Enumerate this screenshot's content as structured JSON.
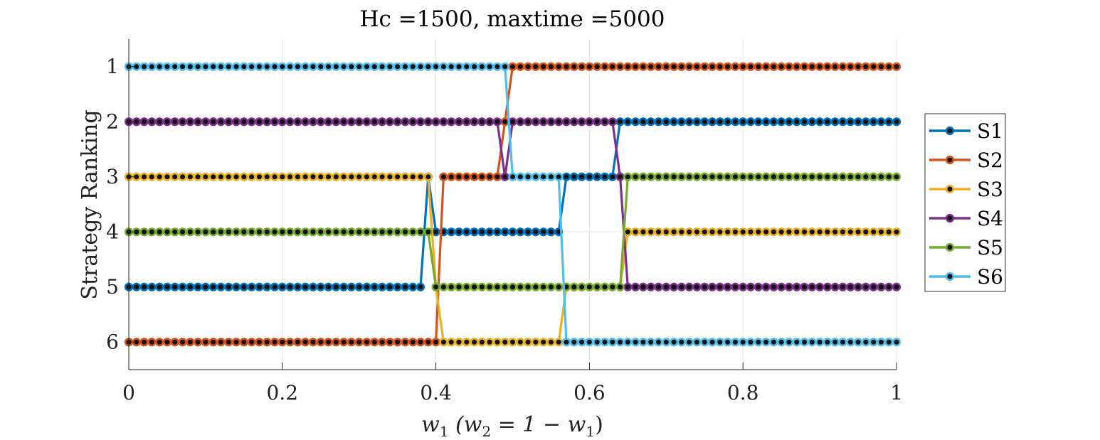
{
  "chart_data": {
    "type": "line",
    "title": "Hc =1500, maxtime =5000",
    "xlabel_parts": [
      "w",
      "1",
      " (w",
      "2",
      " = 1 − w",
      "1",
      ")"
    ],
    "ylabel": "Strategy Ranking",
    "xlim": [
      0,
      1
    ],
    "ylim": [
      0.5,
      6.5
    ],
    "y_reversed": true,
    "xticks": [
      0,
      0.2,
      0.4,
      0.6,
      0.8,
      1
    ],
    "xtick_labels": [
      "0",
      "0.2",
      "0.4",
      "0.6",
      "0.8",
      "1"
    ],
    "yticks": [
      1,
      2,
      3,
      4,
      5,
      6
    ],
    "ytick_labels": [
      "1",
      "2",
      "3",
      "4",
      "5",
      "6"
    ],
    "grid": true,
    "legend_position": "right-outside",
    "marker": "filled circle, black center",
    "num_points": 101,
    "series": [
      {
        "name": "S1",
        "color": "#0072BD",
        "segments": [
          {
            "from": 0,
            "to": 0.38,
            "rank": 5
          },
          {
            "from": 0.39,
            "to": 0.39,
            "rank": 3
          },
          {
            "from": 0.4,
            "to": 0.56,
            "rank": 4
          },
          {
            "from": 0.57,
            "to": 0.63,
            "rank": 3
          },
          {
            "from": 0.64,
            "to": 1,
            "rank": 2
          }
        ]
      },
      {
        "name": "S2",
        "color": "#D95319",
        "segments": [
          {
            "from": 0,
            "to": 0.4,
            "rank": 6
          },
          {
            "from": 0.41,
            "to": 0.48,
            "rank": 3
          },
          {
            "from": 0.49,
            "to": 0.49,
            "rank": 2
          },
          {
            "from": 0.5,
            "to": 1,
            "rank": 1
          }
        ]
      },
      {
        "name": "S3",
        "color": "#EDB120",
        "segments": [
          {
            "from": 0,
            "to": 0.39,
            "rank": 3
          },
          {
            "from": 0.4,
            "to": 0.4,
            "rank": 5
          },
          {
            "from": 0.41,
            "to": 0.56,
            "rank": 6
          },
          {
            "from": 0.57,
            "to": 0.64,
            "rank": 5
          },
          {
            "from": 0.65,
            "to": 1,
            "rank": 4
          }
        ]
      },
      {
        "name": "S4",
        "color": "#7E2F8E",
        "segments": [
          {
            "from": 0,
            "to": 0.48,
            "rank": 2
          },
          {
            "from": 0.49,
            "to": 0.49,
            "rank": 3
          },
          {
            "from": 0.5,
            "to": 0.63,
            "rank": 2
          },
          {
            "from": 0.64,
            "to": 0.64,
            "rank": 3
          },
          {
            "from": 0.65,
            "to": 1,
            "rank": 5
          }
        ]
      },
      {
        "name": "S5",
        "color": "#77AC30",
        "segments": [
          {
            "from": 0,
            "to": 0.38,
            "rank": 4
          },
          {
            "from": 0.39,
            "to": 0.39,
            "rank": 4
          },
          {
            "from": 0.4,
            "to": 0.64,
            "rank": 5
          },
          {
            "from": 0.65,
            "to": 1,
            "rank": 3
          }
        ]
      },
      {
        "name": "S6",
        "color": "#4DBEEE",
        "segments": [
          {
            "from": 0,
            "to": 0.49,
            "rank": 1
          },
          {
            "from": 0.5,
            "to": 0.56,
            "rank": 3
          },
          {
            "from": 0.57,
            "to": 1,
            "rank": 6
          }
        ]
      }
    ]
  }
}
